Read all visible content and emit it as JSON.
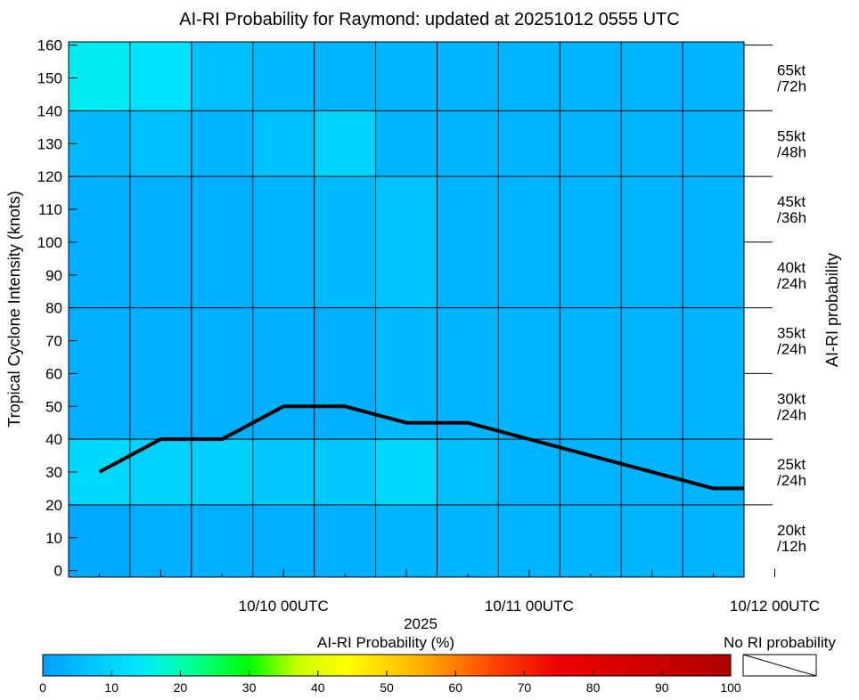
{
  "chart_data": {
    "type": "heatmap",
    "title": "AI-RI Probability for Raymond: updated at 20251012 0555 UTC",
    "ylabel": "Tropical Cyclone Intensity (knots)",
    "right_label": "AI-RI probability",
    "xlabel": "2025",
    "ylim": [
      -2,
      161
    ],
    "y_ticks": [
      0,
      10,
      20,
      30,
      40,
      50,
      60,
      70,
      80,
      90,
      100,
      110,
      120,
      130,
      140,
      150,
      160
    ],
    "x_columns": 11,
    "x_ticks": [
      {
        "col": 1.5,
        "label": ""
      },
      {
        "col": 3.5,
        "label": "10/10 00UTC"
      },
      {
        "col": 5.5,
        "label": ""
      },
      {
        "col": 7.5,
        "label": "10/11 00UTC"
      },
      {
        "col": 9.5,
        "label": ""
      },
      {
        "col": 11.5,
        "label": "10/12 00UTC"
      }
    ],
    "minor_ticks": [
      0.5,
      2.5,
      4.5,
      6.5,
      8.5,
      10.5
    ],
    "row_edges": [
      -2,
      20,
      40,
      80,
      120,
      140,
      161
    ],
    "grid_rows": [
      [
        2,
        3,
        3,
        3,
        3,
        4,
        4,
        4,
        4,
        4,
        4
      ],
      [
        11,
        10,
        9,
        8,
        8,
        11,
        6,
        4,
        4,
        4,
        4
      ],
      [
        3,
        3,
        3,
        3,
        3,
        5,
        4,
        4,
        4,
        4,
        4
      ],
      [
        3,
        3,
        3,
        4,
        5,
        7,
        4,
        4,
        4,
        4,
        4
      ],
      [
        5,
        6,
        4,
        6,
        10,
        4,
        4,
        4,
        4,
        4,
        4
      ],
      [
        15,
        13,
        6,
        5,
        4,
        4,
        4,
        4,
        4,
        4,
        4
      ]
    ],
    "right_levels": [
      {
        "kt": "20kt",
        "h": "/12h"
      },
      {
        "kt": "25kt",
        "h": "/24h"
      },
      {
        "kt": "30kt",
        "h": "/24h"
      },
      {
        "kt": "35kt",
        "h": "/24h"
      },
      {
        "kt": "40kt",
        "h": "/24h"
      },
      {
        "kt": "45kt",
        "h": "/36h"
      },
      {
        "kt": "55kt",
        "h": "/48h"
      },
      {
        "kt": "65kt",
        "h": "/72h"
      }
    ],
    "right_tick_values": [
      20,
      40,
      60,
      80,
      100,
      120,
      140,
      160
    ],
    "intensity_line": {
      "name": "Intensity (knots)",
      "color": "#000000",
      "points": [
        [
          0.5,
          30
        ],
        [
          1.5,
          40
        ],
        [
          2.5,
          40
        ],
        [
          3.5,
          50
        ],
        [
          4.5,
          50
        ],
        [
          5.5,
          45
        ],
        [
          6.5,
          45
        ],
        [
          10.5,
          25
        ],
        [
          11,
          25
        ]
      ]
    },
    "colorbar": {
      "label": "AI-RI Probability (%)",
      "ticks": [
        0,
        10,
        20,
        30,
        40,
        50,
        60,
        70,
        80,
        90,
        100
      ],
      "no_ri_label": "No RI probability"
    }
  }
}
